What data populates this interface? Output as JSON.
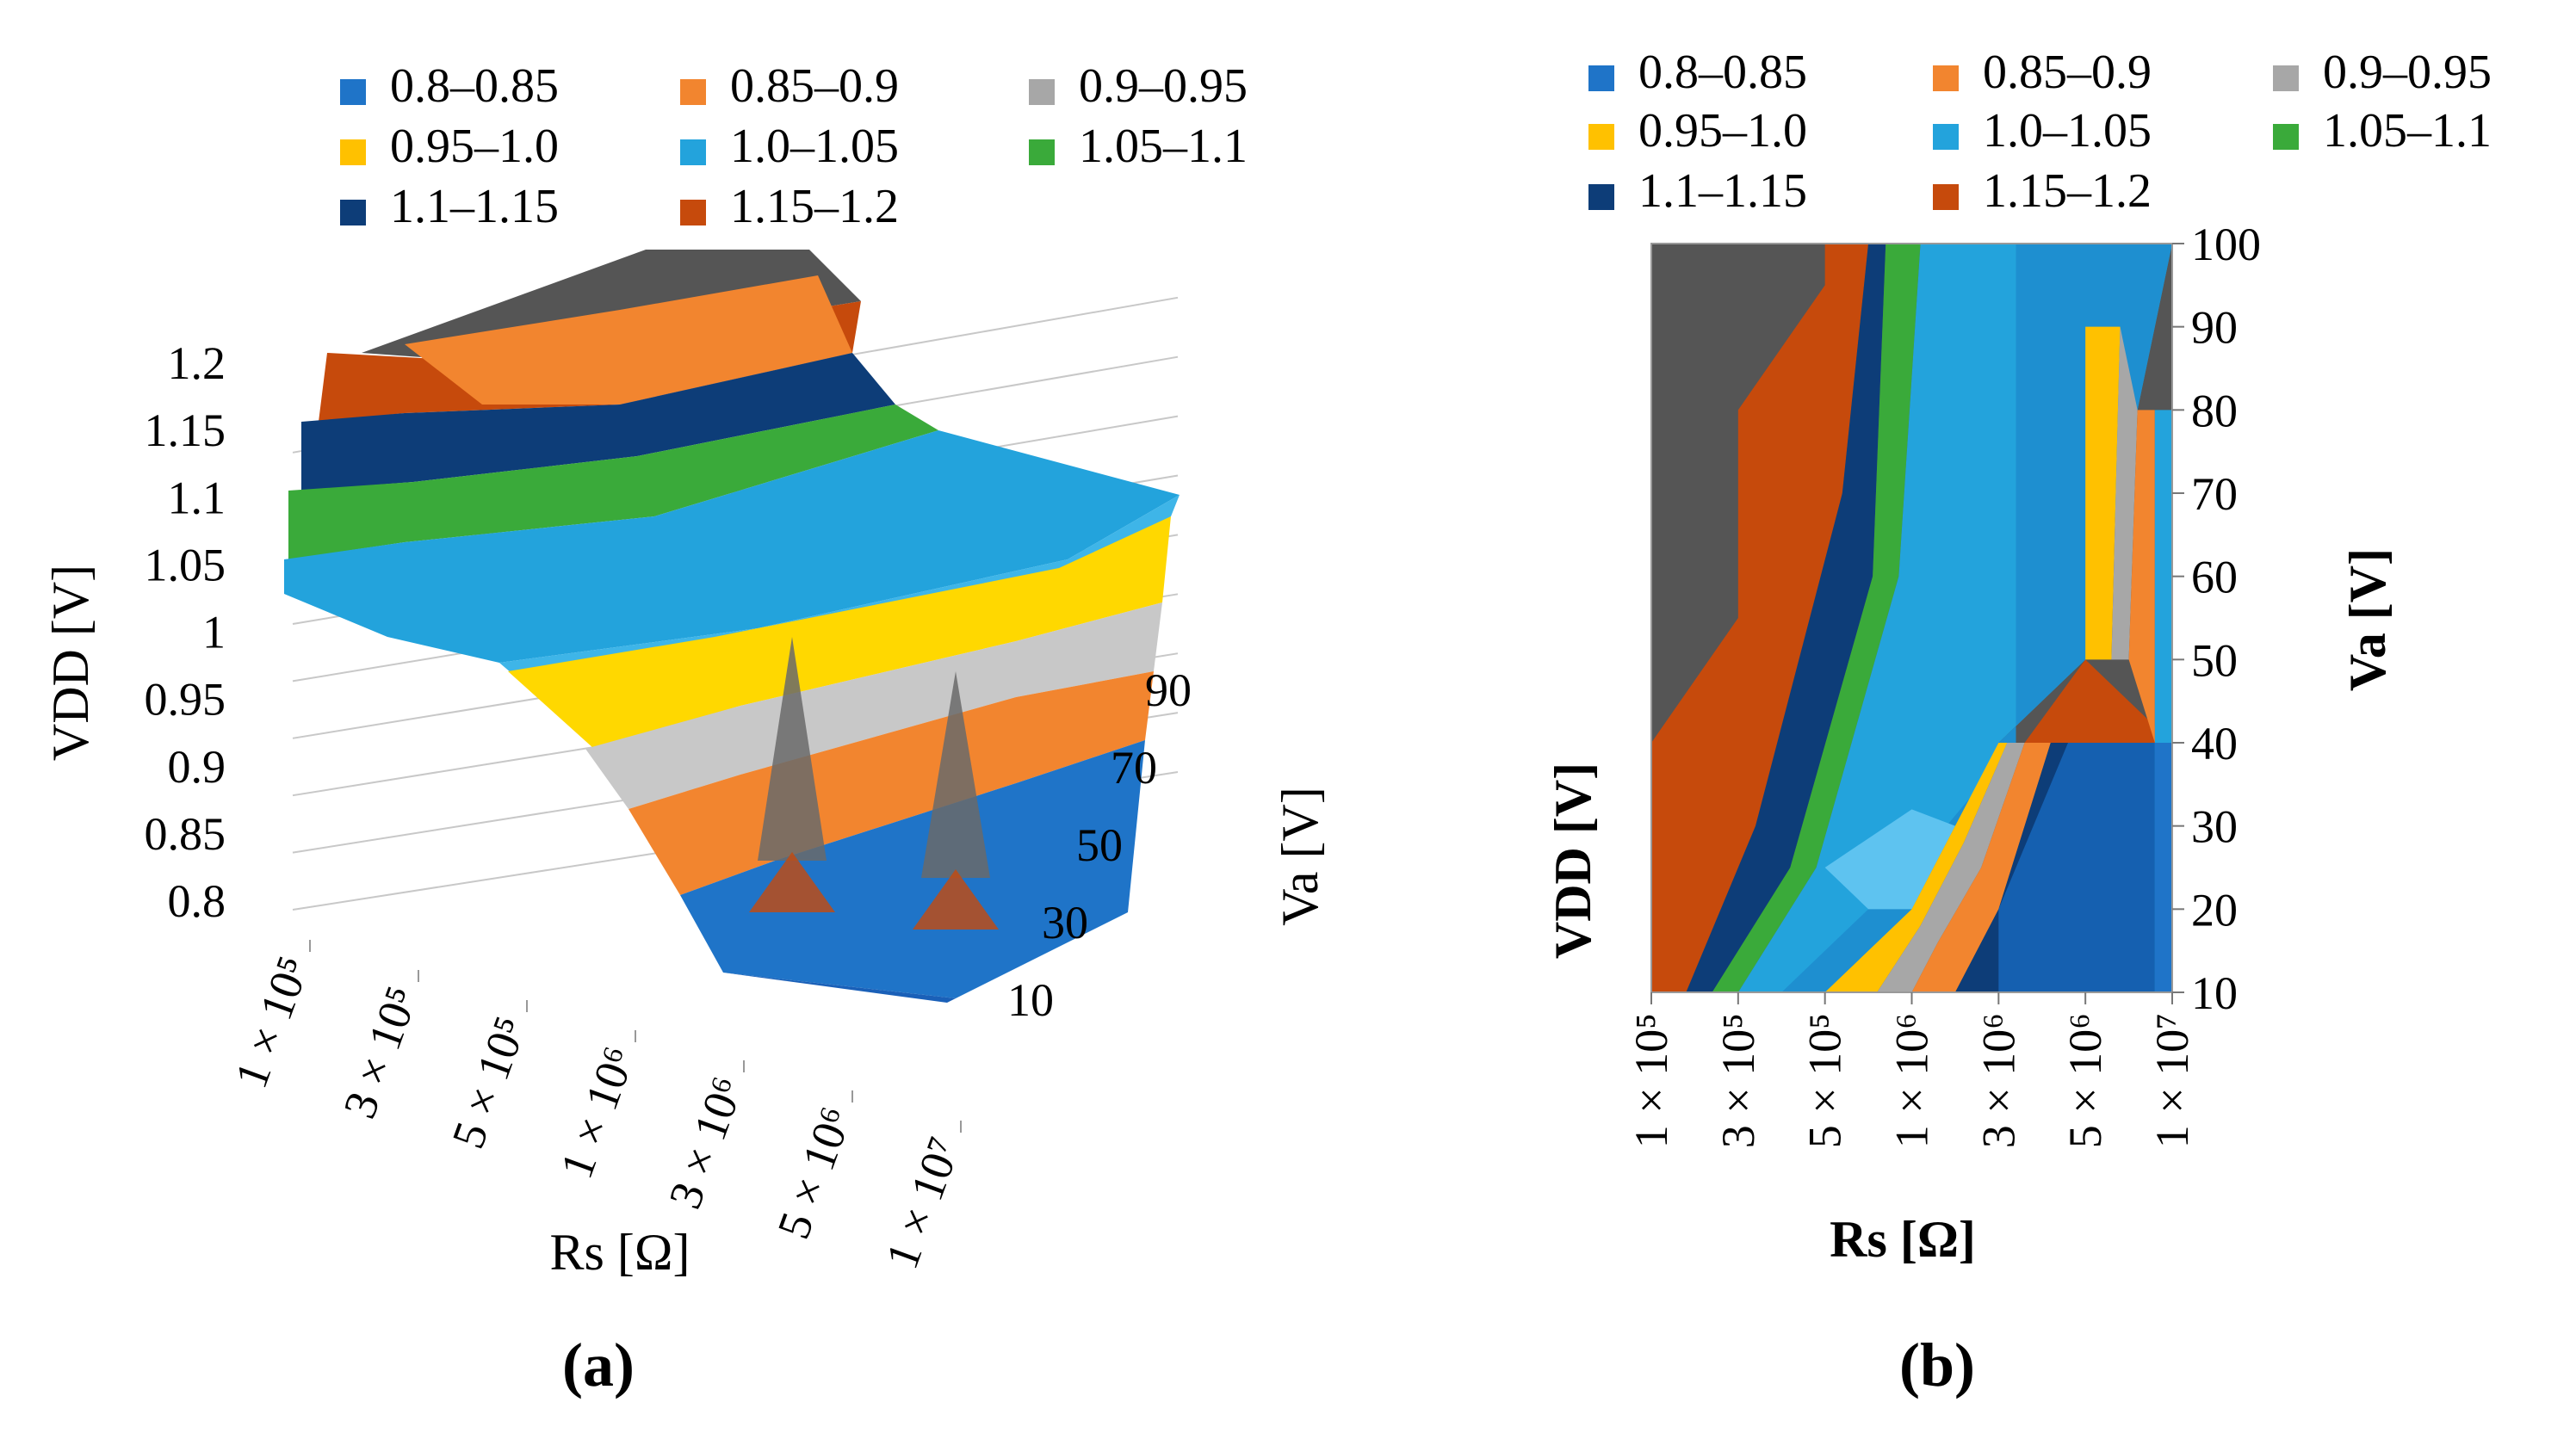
{
  "figure": {
    "panel_a_label": "(a)",
    "panel_b_label": "(b)"
  },
  "legend": [
    {
      "label": "0.8–0.85",
      "color": "#1f74c8"
    },
    {
      "label": "0.85–0.9",
      "color": "#f2852f"
    },
    {
      "label": "0.9–0.95",
      "color": "#a7a7a7"
    },
    {
      "label": "0.95–1.0",
      "color": "#ffc100"
    },
    {
      "label": "1.0–1.05",
      "color": "#23a3dc"
    },
    {
      "label": "1.05–1.1",
      "color": "#3aaa3a"
    },
    {
      "label": "1.1–1.15",
      "color": "#0d3d78"
    },
    {
      "label": "1.15–1.2",
      "color": "#c64a0c"
    }
  ],
  "chart_data": [
    {
      "type": "surface",
      "panel": "(a)",
      "x_categories": [
        "1 × 10⁵",
        "3 × 10⁵",
        "5 × 10⁵",
        "1 × 10⁶",
        "3 × 10⁶",
        "5 × 10⁶",
        "1 × 10⁷"
      ],
      "y_ticks": [
        10,
        30,
        50,
        70,
        90
      ],
      "z_ticks": [
        "0.8",
        "0.85",
        "0.9",
        "0.95",
        "1",
        "1.05",
        "1.1",
        "1.15",
        "1.2"
      ],
      "xlabel": "Rs [Ω]",
      "ylabel": "Va [V]",
      "zlabel": "VDD [V]",
      "zlim": [
        0.8,
        1.2
      ],
      "top_plateau_color": "#555555"
    },
    {
      "type": "heatmap",
      "panel": "(b)",
      "x_categories": [
        "1 × 10⁵",
        "3 × 10⁵",
        "5 × 10⁵",
        "1 × 10⁶",
        "3 × 10⁶",
        "5 × 10⁶",
        "1 × 10⁷"
      ],
      "y_ticks": [
        10,
        20,
        30,
        40,
        50,
        60,
        70,
        80,
        90,
        100
      ],
      "xlabel": "Rs [Ω]",
      "ylabel": "Va [V]",
      "zlabel": "VDD [V]",
      "ylim": [
        10,
        100
      ],
      "background_color": "#555555"
    }
  ]
}
